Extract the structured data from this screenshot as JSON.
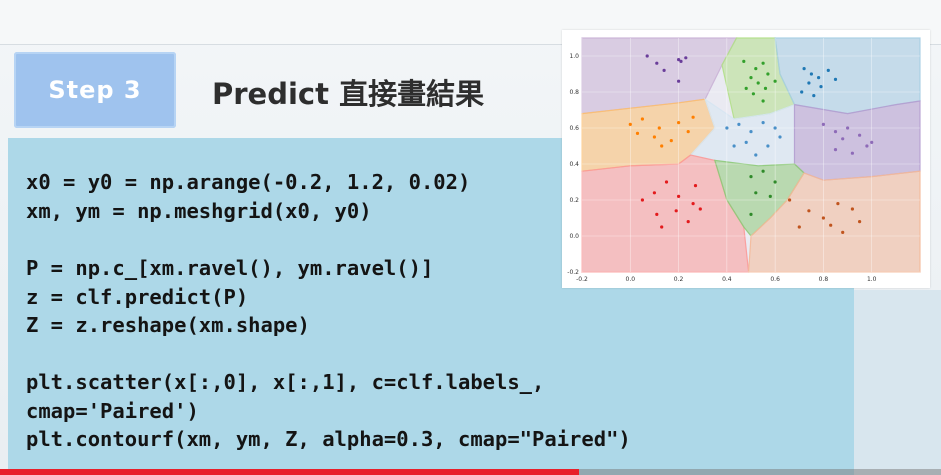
{
  "slide": {
    "step_label": "Step 3",
    "title": "Predict 直接畫結果",
    "colors": {
      "badge": "#9fc3ee",
      "code_panel": "#add8e8",
      "title_text": "#2e2e2e",
      "progress": "#e8202a"
    }
  },
  "code": {
    "block1": [
      "x0 = y0 = np.arange(-0.2, 1.2, 0.02)",
      "xm, ym = np.meshgrid(x0, y0)"
    ],
    "block2": [
      "P = np.c_[xm.ravel(), ym.ravel()]",
      "z = clf.predict(P)",
      "Z = z.reshape(xm.shape)"
    ],
    "block3": [
      "plt.scatter(x[:,0], x[:,1], c=clf.labels_,",
      "cmap='Paired')",
      "plt.contourf(xm, ym, Z, alpha=0.3, cmap=\"Paired\")"
    ]
  },
  "video": {
    "progress_fraction": 0.615
  },
  "chart_data": {
    "type": "scatter",
    "xlim": [
      -0.2,
      1.2
    ],
    "ylim": [
      -0.2,
      1.1
    ],
    "x_ticks": [
      "-0.2",
      "0.0",
      "0.2",
      "0.4",
      "0.6",
      "0.8",
      "1.0"
    ],
    "y_ticks": [
      "-0.2",
      "0.0",
      "0.2",
      "0.4",
      "0.6",
      "0.8",
      "1.0"
    ],
    "x_tick_values": [
      -0.2,
      0.0,
      0.2,
      0.4,
      0.6,
      0.8,
      1.0
    ],
    "y_tick_values": [
      -0.2,
      0.0,
      0.2,
      0.4,
      0.6,
      0.8,
      1.0
    ],
    "grid": true,
    "regions": [
      {
        "color": "#cab2d6",
        "polygon": [
          [
            -0.2,
            0.68
          ],
          [
            0.0,
            0.71
          ],
          [
            0.2,
            0.74
          ],
          [
            0.31,
            0.76
          ],
          [
            0.38,
            0.95
          ],
          [
            0.44,
            1.1
          ],
          [
            -0.2,
            1.1
          ]
        ]
      },
      {
        "color": "#b2df8a",
        "polygon": [
          [
            0.44,
            1.1
          ],
          [
            0.6,
            1.1
          ],
          [
            0.62,
            0.9
          ],
          [
            0.68,
            0.73
          ],
          [
            0.58,
            0.68
          ],
          [
            0.43,
            0.65
          ],
          [
            0.38,
            0.95
          ]
        ]
      },
      {
        "color": "#a6cee3",
        "polygon": [
          [
            0.6,
            1.1
          ],
          [
            1.2,
            1.1
          ],
          [
            1.2,
            0.75
          ],
          [
            1.1,
            0.73
          ],
          [
            0.9,
            0.68
          ],
          [
            0.68,
            0.73
          ],
          [
            0.62,
            0.9
          ]
        ]
      },
      {
        "color": "#fdbf6f",
        "polygon": [
          [
            -0.2,
            0.68
          ],
          [
            0.0,
            0.71
          ],
          [
            0.2,
            0.74
          ],
          [
            0.31,
            0.76
          ],
          [
            0.35,
            0.6
          ],
          [
            0.25,
            0.45
          ],
          [
            0.2,
            0.4
          ],
          [
            0.0,
            0.39
          ],
          [
            -0.2,
            0.36
          ]
        ]
      },
      {
        "color": "#d6e6f2",
        "polygon": [
          [
            0.31,
            0.76
          ],
          [
            0.43,
            0.65
          ],
          [
            0.58,
            0.68
          ],
          [
            0.68,
            0.73
          ],
          [
            0.68,
            0.55
          ],
          [
            0.68,
            0.4
          ],
          [
            0.53,
            0.39
          ],
          [
            0.35,
            0.42
          ],
          [
            0.25,
            0.45
          ],
          [
            0.35,
            0.6
          ]
        ]
      },
      {
        "color": "#b59ed0",
        "polygon": [
          [
            0.68,
            0.73
          ],
          [
            0.9,
            0.68
          ],
          [
            1.1,
            0.73
          ],
          [
            1.2,
            0.75
          ],
          [
            1.2,
            0.36
          ],
          [
            1.0,
            0.33
          ],
          [
            0.8,
            0.31
          ],
          [
            0.72,
            0.35
          ],
          [
            0.68,
            0.4
          ],
          [
            0.68,
            0.55
          ]
        ]
      },
      {
        "color": "#fb9a99",
        "polygon": [
          [
            -0.2,
            0.36
          ],
          [
            0.0,
            0.39
          ],
          [
            0.2,
            0.4
          ],
          [
            0.25,
            0.45
          ],
          [
            0.35,
            0.42
          ],
          [
            0.4,
            0.2
          ],
          [
            0.47,
            0.05
          ],
          [
            0.49,
            -0.2
          ],
          [
            -0.2,
            -0.2
          ]
        ]
      },
      {
        "color": "#8fca7a",
        "polygon": [
          [
            0.35,
            0.42
          ],
          [
            0.53,
            0.39
          ],
          [
            0.68,
            0.4
          ],
          [
            0.72,
            0.35
          ],
          [
            0.65,
            0.2
          ],
          [
            0.58,
            0.1
          ],
          [
            0.5,
            0.0
          ],
          [
            0.47,
            0.05
          ],
          [
            0.4,
            0.2
          ]
        ]
      },
      {
        "color": "#f4b999",
        "polygon": [
          [
            0.72,
            0.35
          ],
          [
            0.8,
            0.31
          ],
          [
            1.0,
            0.33
          ],
          [
            1.2,
            0.36
          ],
          [
            1.2,
            -0.2
          ],
          [
            0.49,
            -0.2
          ],
          [
            0.5,
            0.0
          ],
          [
            0.58,
            0.1
          ],
          [
            0.65,
            0.2
          ]
        ]
      }
    ],
    "series": [
      {
        "color": "#6a3d9a",
        "x": [
          0.07,
          0.11,
          0.2,
          0.21,
          0.23,
          0.14,
          0.2
        ],
        "y": [
          1.0,
          0.96,
          0.98,
          0.97,
          0.99,
          0.92,
          0.86
        ]
      },
      {
        "color": "#33a02c",
        "x": [
          0.47,
          0.52,
          0.55,
          0.57,
          0.5,
          0.53,
          0.56,
          0.6,
          0.48,
          0.51,
          0.55
        ],
        "y": [
          0.97,
          0.93,
          0.96,
          0.9,
          0.88,
          0.85,
          0.82,
          0.86,
          0.82,
          0.79,
          0.75
        ]
      },
      {
        "color": "#1f78b4",
        "x": [
          0.72,
          0.75,
          0.78,
          0.82,
          0.74,
          0.79,
          0.85,
          0.71,
          0.76
        ],
        "y": [
          0.93,
          0.9,
          0.88,
          0.92,
          0.85,
          0.83,
          0.87,
          0.8,
          0.78
        ]
      },
      {
        "color": "#ff7f00",
        "x": [
          0.0,
          0.05,
          0.12,
          0.2,
          0.24,
          0.1,
          0.17,
          0.26,
          0.03,
          0.13
        ],
        "y": [
          0.62,
          0.65,
          0.6,
          0.63,
          0.58,
          0.55,
          0.53,
          0.66,
          0.57,
          0.5
        ]
      },
      {
        "color": "#4a90c8",
        "x": [
          0.4,
          0.45,
          0.5,
          0.55,
          0.6,
          0.62,
          0.43,
          0.48,
          0.57,
          0.52
        ],
        "y": [
          0.6,
          0.62,
          0.58,
          0.63,
          0.6,
          0.55,
          0.5,
          0.52,
          0.5,
          0.45
        ]
      },
      {
        "color": "#8e6bb8",
        "x": [
          0.8,
          0.85,
          0.9,
          0.95,
          1.0,
          0.85,
          0.92,
          0.98,
          0.88
        ],
        "y": [
          0.62,
          0.58,
          0.6,
          0.56,
          0.52,
          0.48,
          0.46,
          0.5,
          0.54
        ]
      },
      {
        "color": "#e31a1c",
        "x": [
          0.05,
          0.1,
          0.15,
          0.2,
          0.26,
          0.11,
          0.19,
          0.24,
          0.29,
          0.13,
          0.27
        ],
        "y": [
          0.2,
          0.24,
          0.3,
          0.22,
          0.18,
          0.12,
          0.14,
          0.08,
          0.15,
          0.05,
          0.28
        ]
      },
      {
        "color": "#2f8a2a",
        "x": [
          0.5,
          0.55,
          0.6,
          0.52,
          0.58,
          0.5
        ],
        "y": [
          0.33,
          0.36,
          0.3,
          0.24,
          0.22,
          0.12
        ]
      },
      {
        "color": "#c0541e",
        "x": [
          0.66,
          0.74,
          0.8,
          0.86,
          0.92,
          0.95,
          0.7,
          0.88,
          0.83
        ],
        "y": [
          0.2,
          0.14,
          0.1,
          0.18,
          0.15,
          0.08,
          0.05,
          0.02,
          0.06
        ]
      }
    ]
  }
}
